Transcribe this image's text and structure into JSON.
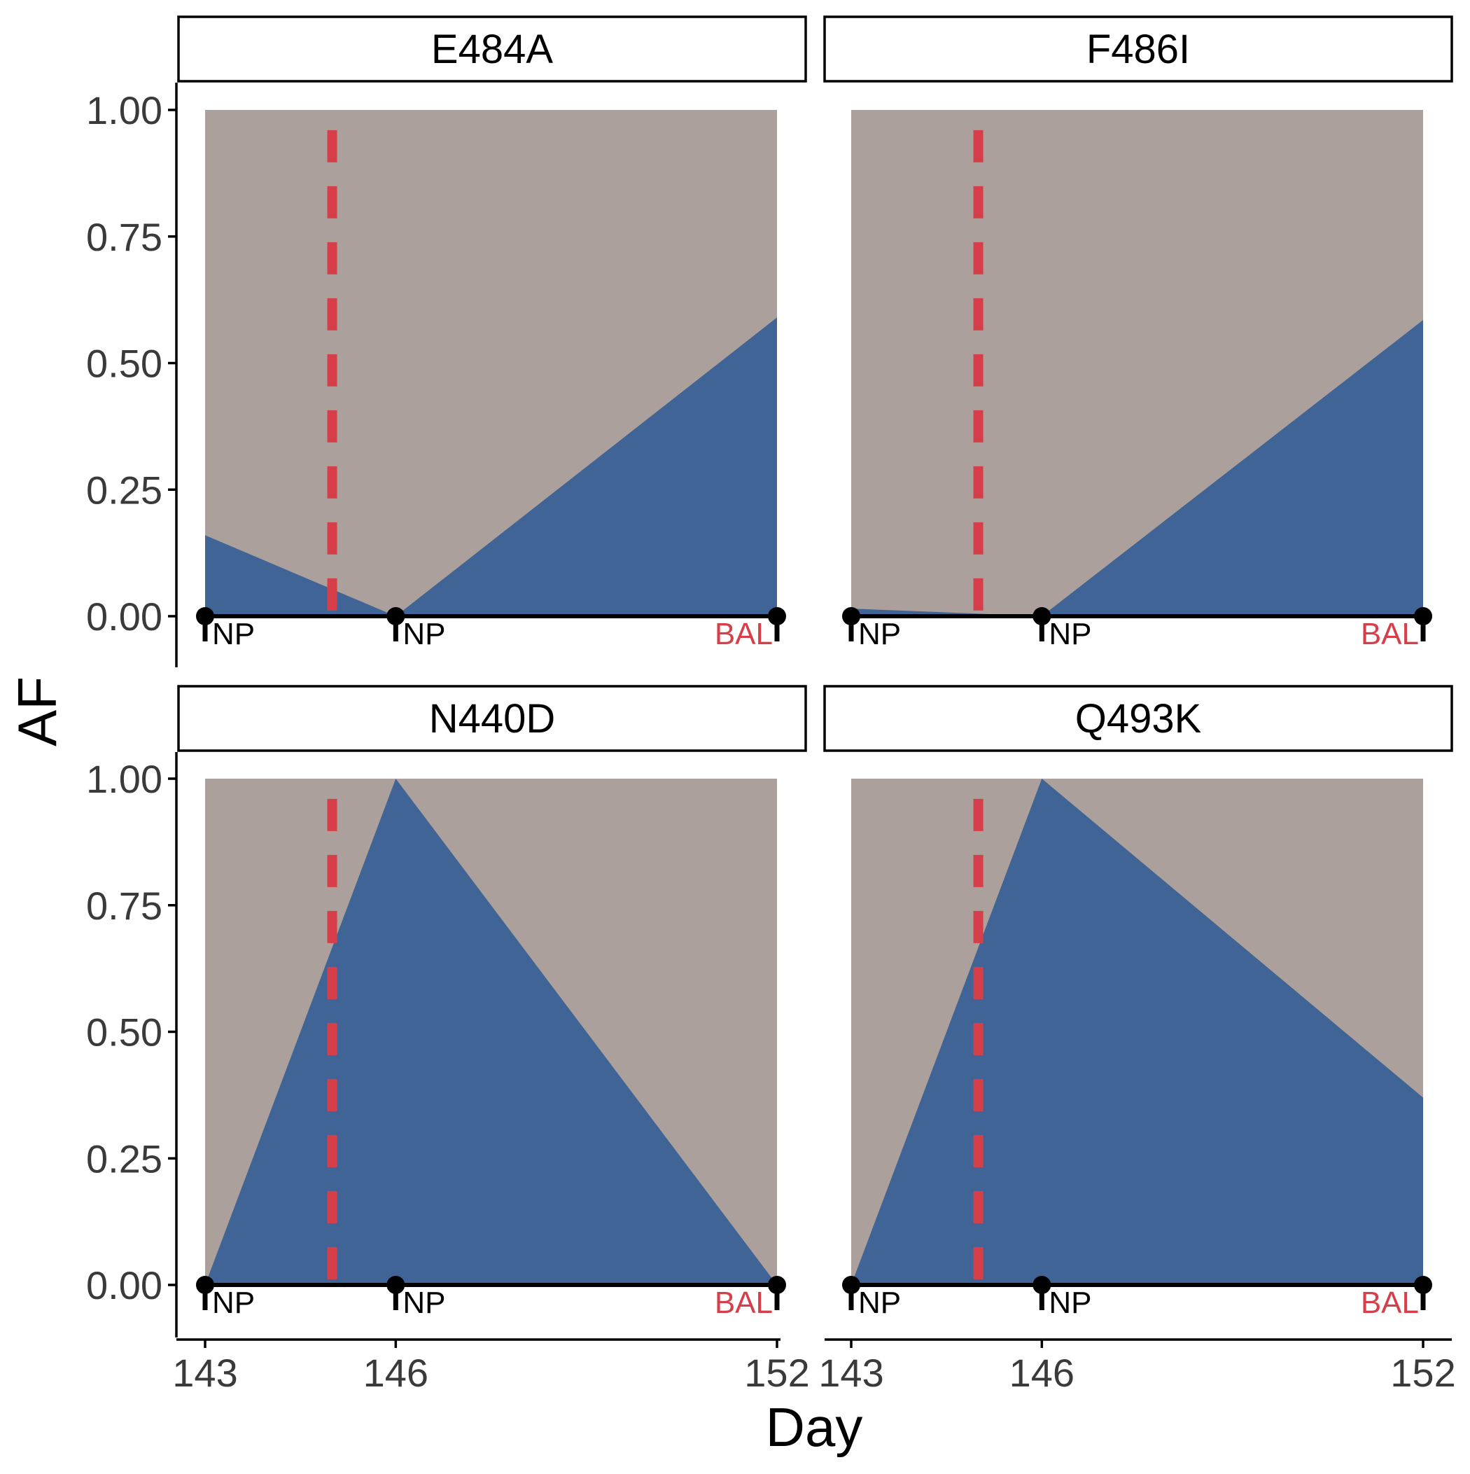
{
  "colors": {
    "background_area": "#aba09b",
    "af_area": "#3f6495",
    "treatment_line": "#d63f49",
    "sample_np": "#000000",
    "sample_bal": "#d63f49",
    "axis": "#000000"
  },
  "chart_data": {
    "type": "area",
    "layout": "facet-grid 2x2",
    "xlabel": "Day",
    "ylabel": "AF",
    "xlim": [
      143,
      152
    ],
    "ylim": [
      -0.1,
      1.05
    ],
    "x_ticks": [
      143,
      146,
      152
    ],
    "x_tick_labels": [
      "143",
      "146",
      "152"
    ],
    "y_ticks": [
      0,
      0.25,
      0.5,
      0.75,
      1
    ],
    "y_tick_labels": [
      "0.00",
      "0.25",
      "0.50",
      "0.75",
      "1.00"
    ],
    "grid": false,
    "treatment_day": 145,
    "samples": [
      {
        "day": 143,
        "type": "NP"
      },
      {
        "day": 146,
        "type": "NP"
      },
      {
        "day": 152,
        "type": "BAL"
      }
    ],
    "facets": [
      {
        "name": "E484A",
        "x": [
          143,
          146,
          152
        ],
        "af": [
          0.16,
          0.0,
          0.59
        ]
      },
      {
        "name": "F486I",
        "x": [
          143,
          146,
          152
        ],
        "af": [
          0.015,
          0.0,
          0.585
        ]
      },
      {
        "name": "N440D",
        "x": [
          143,
          146,
          152
        ],
        "af": [
          0.0,
          1.0,
          0.0
        ]
      },
      {
        "name": "Q493K",
        "x": [
          143,
          146,
          152
        ],
        "af": [
          0.0,
          1.0,
          0.37
        ]
      }
    ]
  }
}
